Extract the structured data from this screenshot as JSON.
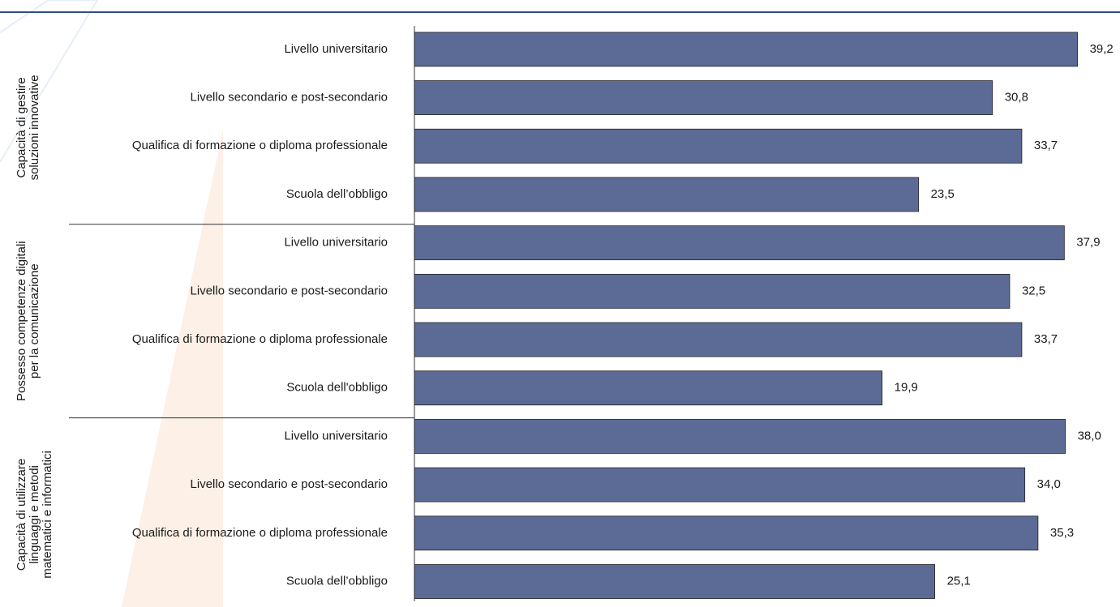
{
  "chart_data": {
    "type": "bar",
    "orientation": "horizontal",
    "color": "#5c6b96",
    "xlim": [
      -26.3,
      43.4
    ],
    "groups": [
      {
        "label_lines": [
          "Capacità di gestire",
          "soluzioni innovative"
        ],
        "categories": [
          "Livello universitario",
          "Livello secondario e post-secondario",
          "Qualifica di formazione o diploma professionale",
          "Scuola dell’obbligo"
        ],
        "values": [
          39.2,
          30.8,
          33.7,
          23.5
        ],
        "value_labels": [
          "39,2",
          "30,8",
          "33,7",
          "23,5"
        ]
      },
      {
        "label_lines": [
          "Possesso competenze digitali",
          "per la comunicazione"
        ],
        "categories": [
          "Livello universitario",
          "Livello secondario e post-secondario",
          "Qualifica di formazione o diploma professionale",
          "Scuola dell'obbligo"
        ],
        "values": [
          37.9,
          32.5,
          33.7,
          19.9
        ],
        "value_labels": [
          "37,9",
          "32,5",
          "33,7",
          "19,9"
        ]
      },
      {
        "label_lines": [
          "Capacità di utilizzare",
          "linguaggi e metodi",
          "matematici e informatici"
        ],
        "categories": [
          "Livello universitario",
          "Livello secondario e post-secondario",
          "Qualifica di formazione o diploma professionale",
          "Scuola dell’obbligo"
        ],
        "values": [
          38.0,
          34.0,
          35.3,
          25.1
        ],
        "value_labels": [
          "38,0",
          "34,0",
          "35,3",
          "25,1"
        ]
      }
    ]
  }
}
